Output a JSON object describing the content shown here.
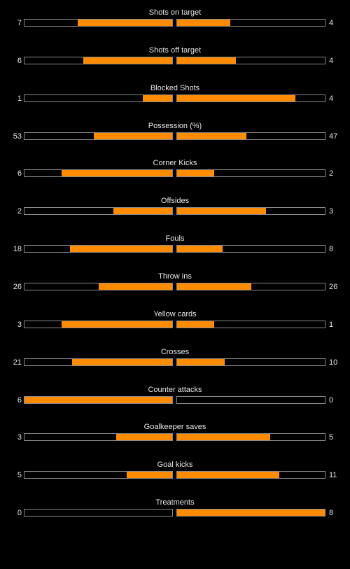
{
  "colors": {
    "background": "#000000",
    "fill": "#ff8c00",
    "bar_border": "#8a8a8a",
    "text": "#e6e6e6"
  },
  "stats": [
    {
      "label": "Shots on target",
      "home": "7",
      "away": "4",
      "home_fill": 0.64,
      "away_fill": 0.36
    },
    {
      "label": "Shots off target",
      "home": "6",
      "away": "4",
      "home_fill": 0.6,
      "away_fill": 0.4
    },
    {
      "label": "Blocked Shots",
      "home": "1",
      "away": "4",
      "home_fill": 0.2,
      "away_fill": 0.8
    },
    {
      "label": "Possession (%)",
      "home": "53",
      "away": "47",
      "home_fill": 0.53,
      "away_fill": 0.47
    },
    {
      "label": "Corner Kicks",
      "home": "6",
      "away": "2",
      "home_fill": 0.75,
      "away_fill": 0.25
    },
    {
      "label": "Offsides",
      "home": "2",
      "away": "3",
      "home_fill": 0.4,
      "away_fill": 0.6
    },
    {
      "label": "Fouls",
      "home": "18",
      "away": "8",
      "home_fill": 0.69,
      "away_fill": 0.31
    },
    {
      "label": "Throw ins",
      "home": "26",
      "away": "26",
      "home_fill": 0.5,
      "away_fill": 0.5
    },
    {
      "label": "Yellow cards",
      "home": "3",
      "away": "1",
      "home_fill": 0.75,
      "away_fill": 0.25
    },
    {
      "label": "Crosses",
      "home": "21",
      "away": "10",
      "home_fill": 0.68,
      "away_fill": 0.32
    },
    {
      "label": "Counter attacks",
      "home": "6",
      "away": "0",
      "home_fill": 1.0,
      "away_fill": 0.0
    },
    {
      "label": "Goalkeeper saves",
      "home": "3",
      "away": "5",
      "home_fill": 0.38,
      "away_fill": 0.63
    },
    {
      "label": "Goal kicks",
      "home": "5",
      "away": "11",
      "home_fill": 0.31,
      "away_fill": 0.69
    },
    {
      "label": "Treatments",
      "home": "0",
      "away": "8",
      "home_fill": 0.0,
      "away_fill": 1.0
    }
  ]
}
